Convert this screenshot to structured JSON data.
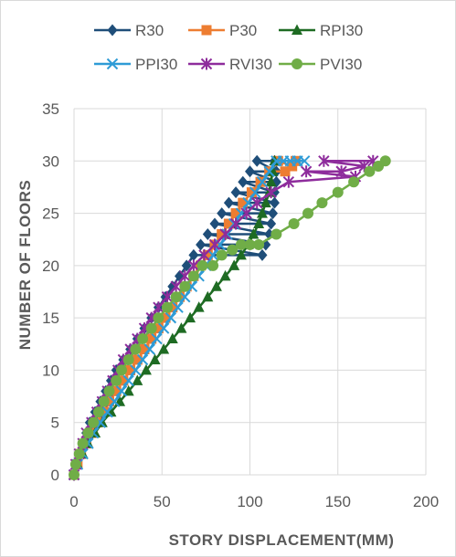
{
  "chart_data": {
    "type": "line",
    "title": "",
    "xlabel": "STORY DISPLACEMENT(MM)",
    "ylabel": "NUMBER OF FLOORS",
    "xlim": [
      0,
      200
    ],
    "ylim": [
      0,
      35
    ],
    "xticks": [
      "0",
      "50",
      "100",
      "150",
      "200"
    ],
    "yticks": [
      "0",
      "5",
      "10",
      "15",
      "20",
      "25",
      "30",
      "35"
    ],
    "grid": true,
    "legend_position": "top",
    "series": [
      {
        "name": "R30",
        "color": "#1f4e79",
        "marker": "diamond",
        "x": [
          0,
          1,
          3,
          5,
          7,
          9,
          12,
          15,
          18,
          21,
          24,
          28,
          32,
          36,
          40,
          44,
          48,
          52,
          56,
          60,
          64,
          68,
          72,
          76,
          80,
          84,
          88,
          92,
          96,
          100,
          104,
          107,
          109,
          111,
          112,
          113,
          114,
          114,
          115,
          115,
          114
        ],
        "y": [
          0,
          1,
          2,
          3,
          4,
          5,
          6,
          7,
          8,
          9,
          10,
          11,
          12,
          13,
          14,
          15,
          16,
          17,
          18,
          19,
          20,
          21,
          22,
          23,
          24,
          25,
          26,
          27,
          28,
          29,
          30,
          21,
          22,
          23,
          24,
          25,
          26,
          27,
          28,
          29,
          30
        ]
      },
      {
        "name": "P30",
        "color": "#ed7d31",
        "marker": "square",
        "x": [
          0,
          2,
          4,
          7,
          10,
          13,
          17,
          20,
          24,
          28,
          32,
          36,
          40,
          44,
          48,
          52,
          56,
          60,
          64,
          68,
          72,
          76,
          80,
          84,
          88,
          92,
          96,
          101,
          106,
          111,
          116,
          120,
          124,
          126
        ],
        "y": [
          0,
          1,
          2,
          3,
          4,
          5,
          6,
          7,
          8,
          9,
          10,
          11,
          12,
          13,
          14,
          15,
          16,
          17,
          18,
          19,
          20,
          21,
          22,
          23,
          24,
          25,
          26,
          27,
          28,
          29,
          30,
          29,
          29.5,
          30
        ]
      },
      {
        "name": "RPI30",
        "color": "#1e6b23",
        "marker": "triangle",
        "x": [
          0,
          2,
          5,
          8,
          12,
          16,
          21,
          26,
          31,
          36,
          41,
          46,
          51,
          56,
          61,
          66,
          71,
          76,
          81,
          86,
          91,
          95,
          99,
          102,
          105,
          107,
          109,
          111,
          112,
          113,
          114
        ],
        "y": [
          0,
          1,
          2,
          3,
          4,
          5,
          6,
          7,
          8,
          9,
          10,
          11,
          12,
          13,
          14,
          15,
          16,
          17,
          18,
          19,
          20,
          21,
          22,
          23,
          24,
          25,
          26,
          27,
          28,
          29,
          30
        ]
      },
      {
        "name": "PPI30",
        "color": "#2e9bd6",
        "marker": "x",
        "x": [
          0,
          2,
          5,
          8,
          11,
          15,
          19,
          23,
          27,
          31,
          35,
          39,
          43,
          47,
          51,
          55,
          59,
          63,
          67,
          71,
          75,
          79,
          83,
          87,
          91,
          95,
          99,
          103,
          107,
          111,
          115,
          119,
          123,
          127,
          131
        ],
        "y": [
          0,
          1,
          2,
          3,
          4,
          5,
          6,
          7,
          8,
          9,
          10,
          11,
          12,
          13,
          14,
          15,
          16,
          17,
          18,
          19,
          20,
          21,
          22,
          23,
          24,
          25,
          26,
          27,
          28,
          29,
          30,
          30,
          30,
          30,
          30
        ]
      },
      {
        "name": "RVI30",
        "color": "#8e2c9c",
        "marker": "star",
        "x": [
          0,
          1,
          3,
          5,
          7,
          10,
          13,
          16,
          19,
          22,
          25,
          28,
          32,
          36,
          40,
          44,
          48,
          53,
          58,
          63,
          68,
          74,
          80,
          86,
          92,
          98,
          104,
          112,
          122,
          132,
          142,
          152,
          160,
          165,
          170
        ],
        "y": [
          0,
          1,
          2,
          3,
          4,
          5,
          6,
          7,
          8,
          9,
          10,
          11,
          12,
          13,
          14,
          15,
          16,
          17,
          18,
          19,
          20,
          21,
          22,
          23,
          24,
          25,
          26,
          27,
          28,
          29,
          30,
          29,
          28.5,
          29.5,
          30
        ]
      },
      {
        "name": "PVI30",
        "color": "#70ad47",
        "marker": "circle",
        "x": [
          0,
          1,
          3,
          5,
          8,
          11,
          14,
          17,
          20,
          24,
          27,
          31,
          35,
          39,
          44,
          48,
          53,
          58,
          63,
          68,
          73,
          79,
          84,
          90,
          95,
          100,
          105,
          115,
          125,
          133,
          141,
          150,
          159,
          168,
          173,
          177
        ],
        "y": [
          0,
          1,
          2,
          3,
          4,
          5,
          6,
          7,
          8,
          9,
          10,
          11,
          12,
          13,
          14,
          15,
          16,
          17,
          18,
          19,
          20,
          20,
          21,
          21.5,
          22,
          22,
          22,
          23,
          24,
          25,
          26,
          27,
          28,
          29,
          29.5,
          30
        ]
      }
    ]
  }
}
